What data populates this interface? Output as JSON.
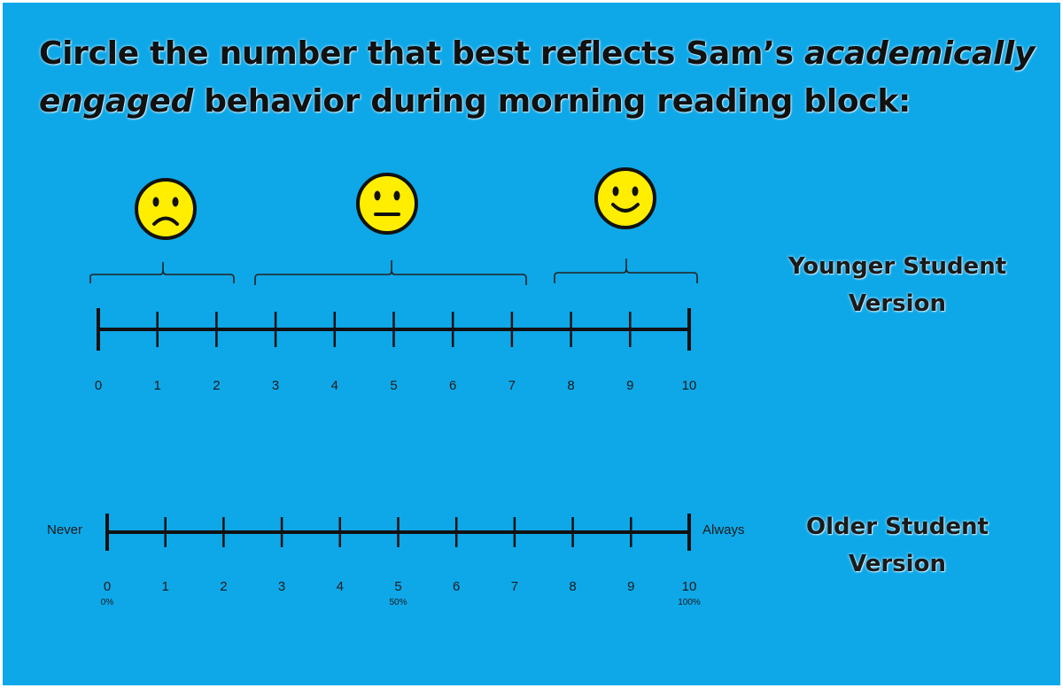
{
  "title": {
    "part1": "Circle the number that best reflects Sam’s ",
    "italic1": "academically",
    "italic2": "engaged",
    "part2": " behavior during morning reading block:"
  },
  "younger": {
    "label_line1": "Younger Student",
    "label_line2": "Version",
    "numbers": [
      "0",
      "1",
      "2",
      "3",
      "4",
      "5",
      "6",
      "7",
      "8",
      "9",
      "10"
    ],
    "faces": [
      "sad-face-icon",
      "neutral-face-icon",
      "happy-face-icon"
    ],
    "groups": [
      {
        "from": 0,
        "to": 2,
        "face": "sad"
      },
      {
        "from": 3,
        "to": 7,
        "face": "neutral"
      },
      {
        "from": 8,
        "to": 10,
        "face": "happy"
      }
    ]
  },
  "older": {
    "label_line1": "Older Student",
    "label_line2": "Version",
    "left_end": "Never",
    "right_end": "Always",
    "numbers": [
      "0",
      "1",
      "2",
      "3",
      "4",
      "5",
      "6",
      "7",
      "8",
      "9",
      "10"
    ],
    "percents": [
      {
        "index": 0,
        "text": "0%"
      },
      {
        "index": 5,
        "text": "50%"
      },
      {
        "index": 10,
        "text": "100%"
      }
    ]
  },
  "colors": {
    "background": "#0ea8e8",
    "face_fill": "#ffee00",
    "line": "#111111"
  }
}
